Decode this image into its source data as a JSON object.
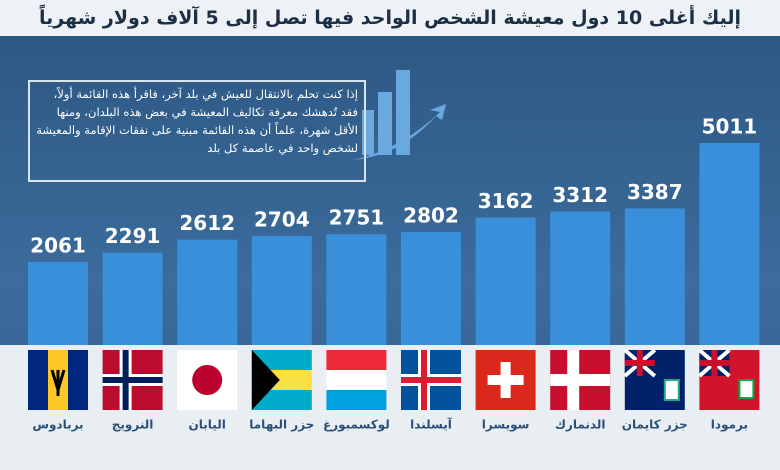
{
  "chart_data": {
    "type": "bar",
    "title": "إليك أغلى 10 دول معيشة الشخص الواحد فيها تصل إلى 5 آلاف دولار شهرياً",
    "subtitle": "إذا كنت تحلم بالانتقال للعيش في بلد آخر، فاقرأ هذه القائمة أولاً، فقد تُدهشك معرفة تكاليف المعيشة في بعض هذه البلدان، ومنها الأقل شهرة، علماً أن هذه القائمة مبنية على نفقات الإقامة والمعيشة لشخص واحد في عاصمة كل بلد",
    "categories": [
      "بربادوس",
      "النرويج",
      "اليابان",
      "جزر البهاما",
      "لوكسمبورغ",
      "آيسلندا",
      "سويسرا",
      "الدنمارك",
      "جزر كايمان",
      "برمودا"
    ],
    "values": [
      2061,
      2291,
      2612,
      2704,
      2751,
      2802,
      3162,
      3312,
      3387,
      5011
    ],
    "color": "#3a8fdb"
  }
}
